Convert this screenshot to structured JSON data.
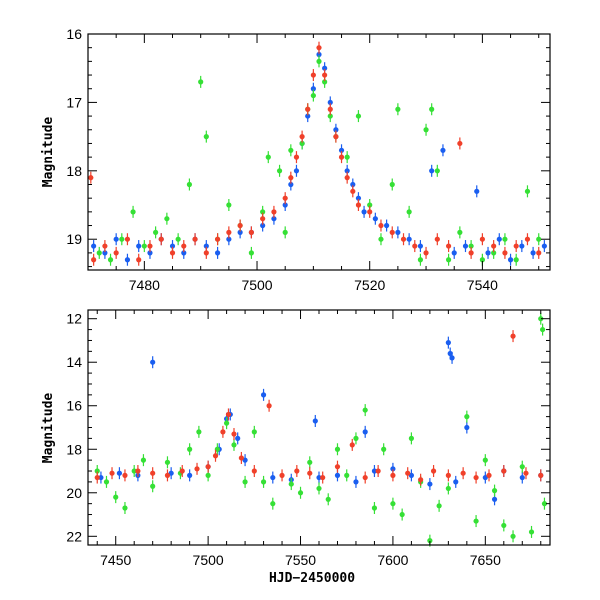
{
  "chart_data": [
    {
      "type": "scatter",
      "title": "",
      "xlabel": "",
      "ylabel": "Magnitude",
      "xlim": [
        7470,
        7552
      ],
      "ylim": [
        19.45,
        16.0
      ],
      "y_inverted": true,
      "x_ticks": [
        7480,
        7500,
        7520,
        7540
      ],
      "y_ticks": [
        16,
        17,
        18,
        19
      ],
      "series": [
        {
          "color": "#1a5ef0",
          "points": [
            [
              7471,
              19.1
            ],
            [
              7473,
              19.2
            ],
            [
              7475,
              19.0
            ],
            [
              7477,
              19.3
            ],
            [
              7479,
              19.1
            ],
            [
              7481,
              19.2
            ],
            [
              7483,
              19.0
            ],
            [
              7485,
              19.1
            ],
            [
              7487,
              19.2
            ],
            [
              7489,
              19.0
            ],
            [
              7491,
              19.1
            ],
            [
              7493,
              19.2
            ],
            [
              7495,
              19.0
            ],
            [
              7497,
              18.9
            ],
            [
              7499,
              18.9
            ],
            [
              7501,
              18.8
            ],
            [
              7503,
              18.7
            ],
            [
              7505,
              18.5
            ],
            [
              7506,
              18.2
            ],
            [
              7507,
              18.0
            ],
            [
              7508,
              17.6
            ],
            [
              7509,
              17.2
            ],
            [
              7510,
              16.8
            ],
            [
              7511,
              16.3
            ],
            [
              7512,
              16.5
            ],
            [
              7513,
              17.0
            ],
            [
              7514,
              17.4
            ],
            [
              7515,
              17.7
            ],
            [
              7516,
              18.0
            ],
            [
              7517,
              18.2
            ],
            [
              7518,
              18.4
            ],
            [
              7519,
              18.6
            ],
            [
              7521,
              18.7
            ],
            [
              7523,
              18.8
            ],
            [
              7525,
              18.9
            ],
            [
              7527,
              19.0
            ],
            [
              7529,
              19.1
            ],
            [
              7531,
              18.0
            ],
            [
              7533,
              17.7
            ],
            [
              7535,
              19.2
            ],
            [
              7537,
              19.1
            ],
            [
              7539,
              18.3
            ],
            [
              7541,
              19.2
            ],
            [
              7543,
              19.0
            ],
            [
              7545,
              19.3
            ],
            [
              7547,
              19.1
            ],
            [
              7549,
              19.2
            ],
            [
              7551,
              19.1
            ]
          ]
        },
        {
          "color": "#35e035",
          "points": [
            [
              7472,
              19.2
            ],
            [
              7474,
              19.3
            ],
            [
              7476,
              19.0
            ],
            [
              7478,
              18.6
            ],
            [
              7480,
              19.1
            ],
            [
              7482,
              18.9
            ],
            [
              7484,
              18.7
            ],
            [
              7486,
              19.0
            ],
            [
              7488,
              18.2
            ],
            [
              7490,
              16.7
            ],
            [
              7491,
              17.5
            ],
            [
              7493,
              19.0
            ],
            [
              7495,
              18.5
            ],
            [
              7497,
              18.8
            ],
            [
              7499,
              19.2
            ],
            [
              7501,
              18.6
            ],
            [
              7502,
              17.8
            ],
            [
              7504,
              18.0
            ],
            [
              7505,
              18.9
            ],
            [
              7506,
              17.7
            ],
            [
              7508,
              17.6
            ],
            [
              7509,
              17.1
            ],
            [
              7510,
              16.9
            ],
            [
              7511,
              16.4
            ],
            [
              7512,
              16.7
            ],
            [
              7513,
              17.2
            ],
            [
              7514,
              17.5
            ],
            [
              7516,
              17.8
            ],
            [
              7518,
              17.2
            ],
            [
              7520,
              18.5
            ],
            [
              7522,
              19.0
            ],
            [
              7524,
              18.2
            ],
            [
              7525,
              17.1
            ],
            [
              7527,
              18.6
            ],
            [
              7529,
              19.3
            ],
            [
              7530,
              17.4
            ],
            [
              7531,
              17.1
            ],
            [
              7532,
              18.0
            ],
            [
              7534,
              19.3
            ],
            [
              7536,
              18.9
            ],
            [
              7538,
              19.1
            ],
            [
              7540,
              19.3
            ],
            [
              7542,
              19.2
            ],
            [
              7544,
              19.0
            ],
            [
              7546,
              19.3
            ],
            [
              7548,
              18.3
            ],
            [
              7550,
              19.0
            ]
          ]
        },
        {
          "color": "#f0402a",
          "points": [
            [
              7470.5,
              18.1
            ],
            [
              7471,
              19.3
            ],
            [
              7473,
              19.1
            ],
            [
              7475,
              19.2
            ],
            [
              7477,
              19.0
            ],
            [
              7479,
              19.3
            ],
            [
              7481,
              19.1
            ],
            [
              7483,
              19.0
            ],
            [
              7485,
              19.2
            ],
            [
              7487,
              19.1
            ],
            [
              7489,
              19.0
            ],
            [
              7491,
              19.2
            ],
            [
              7493,
              19.0
            ],
            [
              7495,
              18.9
            ],
            [
              7497,
              18.8
            ],
            [
              7499,
              18.9
            ],
            [
              7501,
              18.7
            ],
            [
              7503,
              18.6
            ],
            [
              7505,
              18.4
            ],
            [
              7506,
              18.1
            ],
            [
              7507,
              17.8
            ],
            [
              7508,
              17.5
            ],
            [
              7509,
              17.1
            ],
            [
              7510,
              16.6
            ],
            [
              7511,
              16.2
            ],
            [
              7512,
              16.6
            ],
            [
              7513,
              17.1
            ],
            [
              7514,
              17.5
            ],
            [
              7515,
              17.8
            ],
            [
              7516,
              18.1
            ],
            [
              7517,
              18.3
            ],
            [
              7518,
              18.5
            ],
            [
              7520,
              18.6
            ],
            [
              7522,
              18.8
            ],
            [
              7524,
              18.9
            ],
            [
              7526,
              19.0
            ],
            [
              7528,
              19.1
            ],
            [
              7530,
              19.2
            ],
            [
              7532,
              19.0
            ],
            [
              7534,
              19.1
            ],
            [
              7536,
              17.6
            ],
            [
              7538,
              19.2
            ],
            [
              7540,
              19.0
            ],
            [
              7542,
              19.1
            ],
            [
              7544,
              19.2
            ],
            [
              7546,
              19.1
            ],
            [
              7548,
              19.0
            ],
            [
              7550,
              19.2
            ]
          ]
        }
      ]
    },
    {
      "type": "scatter",
      "title": "",
      "xlabel": "HJD−2450000",
      "ylabel": "Magnitude",
      "xlim": [
        7435,
        7685
      ],
      "ylim": [
        22.4,
        11.6
      ],
      "y_inverted": true,
      "x_ticks": [
        7450,
        7500,
        7550,
        7600,
        7650
      ],
      "y_ticks": [
        12,
        14,
        16,
        18,
        20,
        22
      ],
      "series": [
        {
          "color": "#1a5ef0",
          "points": [
            [
              7442,
              19.3
            ],
            [
              7452,
              19.1
            ],
            [
              7462,
              19.2
            ],
            [
              7470,
              14.0
            ],
            [
              7480,
              19.1
            ],
            [
              7490,
              19.2
            ],
            [
              7500,
              18.8
            ],
            [
              7506,
              18.0
            ],
            [
              7510,
              16.6
            ],
            [
              7512,
              16.4
            ],
            [
              7516,
              17.5
            ],
            [
              7520,
              18.5
            ],
            [
              7530,
              15.5
            ],
            [
              7535,
              19.3
            ],
            [
              7545,
              19.4
            ],
            [
              7558,
              16.7
            ],
            [
              7560,
              19.3
            ],
            [
              7570,
              19.2
            ],
            [
              7580,
              19.5
            ],
            [
              7585,
              17.2
            ],
            [
              7590,
              19.0
            ],
            [
              7600,
              18.9
            ],
            [
              7610,
              19.2
            ],
            [
              7620,
              19.6
            ],
            [
              7630,
              13.1
            ],
            [
              7631,
              13.6
            ],
            [
              7632,
              13.8
            ],
            [
              7634,
              19.5
            ],
            [
              7640,
              17.0
            ],
            [
              7650,
              19.3
            ],
            [
              7655,
              20.3
            ],
            [
              7660,
              19.0
            ],
            [
              7670,
              19.3
            ],
            [
              7680,
              19.2
            ]
          ]
        },
        {
          "color": "#35e035",
          "points": [
            [
              7440,
              19.0
            ],
            [
              7445,
              19.5
            ],
            [
              7450,
              20.2
            ],
            [
              7455,
              20.7
            ],
            [
              7460,
              19.0
            ],
            [
              7465,
              18.5
            ],
            [
              7470,
              19.7
            ],
            [
              7478,
              18.6
            ],
            [
              7485,
              19.1
            ],
            [
              7490,
              18.0
            ],
            [
              7495,
              17.2
            ],
            [
              7500,
              19.2
            ],
            [
              7505,
              18.0
            ],
            [
              7510,
              16.8
            ],
            [
              7514,
              17.8
            ],
            [
              7520,
              19.5
            ],
            [
              7525,
              17.2
            ],
            [
              7530,
              19.5
            ],
            [
              7535,
              20.5
            ],
            [
              7545,
              19.6
            ],
            [
              7550,
              20.0
            ],
            [
              7555,
              18.6
            ],
            [
              7560,
              19.8
            ],
            [
              7565,
              20.3
            ],
            [
              7570,
              18.0
            ],
            [
              7575,
              19.2
            ],
            [
              7580,
              17.5
            ],
            [
              7585,
              16.2
            ],
            [
              7590,
              20.7
            ],
            [
              7595,
              18.0
            ],
            [
              7600,
              20.5
            ],
            [
              7605,
              21.0
            ],
            [
              7610,
              17.5
            ],
            [
              7615,
              19.5
            ],
            [
              7620,
              22.2
            ],
            [
              7625,
              20.6
            ],
            [
              7630,
              19.8
            ],
            [
              7640,
              16.5
            ],
            [
              7645,
              21.3
            ],
            [
              7650,
              18.5
            ],
            [
              7655,
              19.9
            ],
            [
              7660,
              21.5
            ],
            [
              7665,
              22.0
            ],
            [
              7670,
              18.8
            ],
            [
              7675,
              21.8
            ],
            [
              7680,
              12.0
            ],
            [
              7681,
              12.5
            ],
            [
              7682,
              20.5
            ]
          ]
        },
        {
          "color": "#f0402a",
          "points": [
            [
              7440,
              19.3
            ],
            [
              7448,
              19.1
            ],
            [
              7455,
              19.2
            ],
            [
              7462,
              19.0
            ],
            [
              7470,
              19.1
            ],
            [
              7478,
              19.2
            ],
            [
              7486,
              19.0
            ],
            [
              7494,
              18.9
            ],
            [
              7500,
              18.8
            ],
            [
              7504,
              18.3
            ],
            [
              7508,
              17.2
            ],
            [
              7511,
              16.4
            ],
            [
              7514,
              17.3
            ],
            [
              7518,
              18.4
            ],
            [
              7525,
              19.0
            ],
            [
              7533,
              16.0
            ],
            [
              7540,
              19.2
            ],
            [
              7548,
              19.0
            ],
            [
              7555,
              19.1
            ],
            [
              7562,
              19.3
            ],
            [
              7570,
              18.8
            ],
            [
              7578,
              17.8
            ],
            [
              7585,
              19.3
            ],
            [
              7592,
              19.0
            ],
            [
              7600,
              19.2
            ],
            [
              7608,
              19.1
            ],
            [
              7615,
              19.4
            ],
            [
              7622,
              19.0
            ],
            [
              7630,
              19.2
            ],
            [
              7638,
              19.1
            ],
            [
              7645,
              19.3
            ],
            [
              7652,
              19.2
            ],
            [
              7660,
              19.0
            ],
            [
              7665,
              12.8
            ],
            [
              7672,
              19.1
            ],
            [
              7680,
              19.2
            ]
          ]
        }
      ]
    }
  ]
}
